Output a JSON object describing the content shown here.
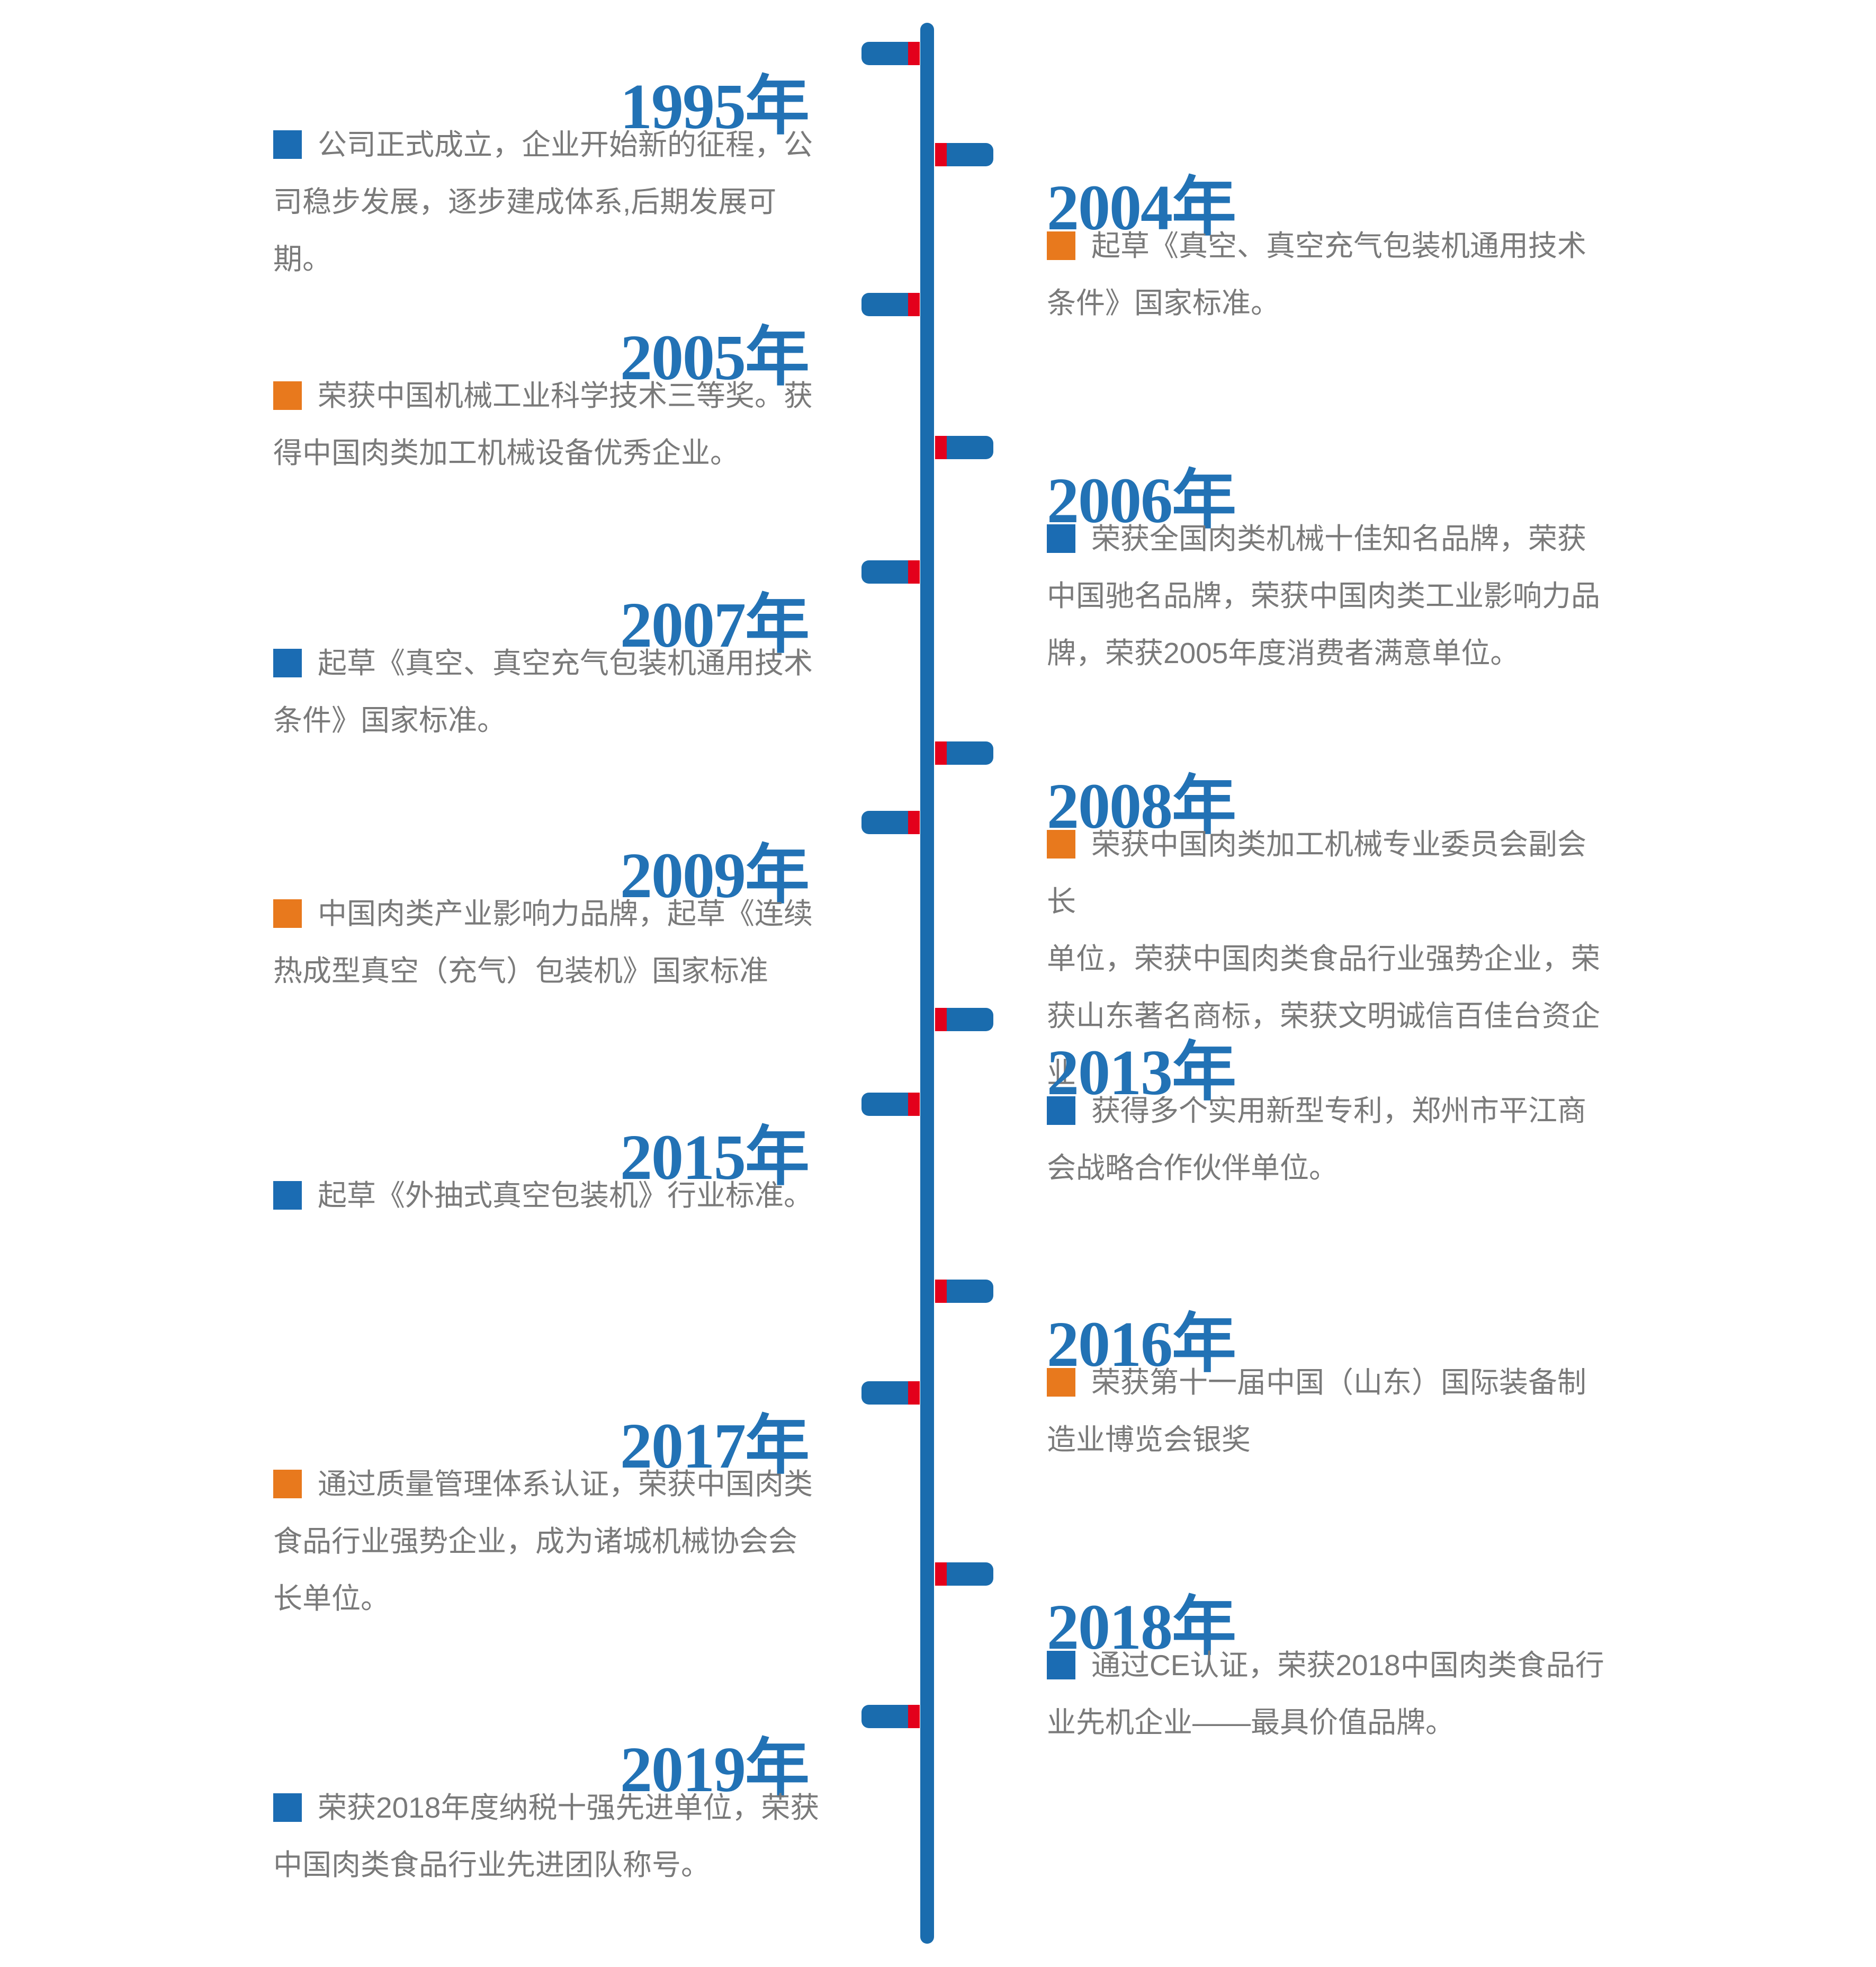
{
  "palette": {
    "axis_blue": "#1a6cae",
    "year_blue": "#2272b5",
    "bullet_blue": "#1b6cb3",
    "bullet_orange": "#e8791d",
    "tick_red": "#e3001b",
    "text_gray": "#7a7a7a",
    "background": "#ffffff"
  },
  "icons": {
    "bullet": "square",
    "connector_tick": "red-square",
    "axis": "vertical-rounded-bar"
  },
  "entries": [
    {
      "year": "1995",
      "suffix": "年",
      "side": "left",
      "bullet_color": "blue",
      "lines": [
        "公司正式成立，企业开始新的征程，公",
        "司稳步发展，逐步建成体系,后期发展可期。"
      ]
    },
    {
      "year": "2004",
      "suffix": "年",
      "side": "right",
      "bullet_color": "orange",
      "lines": [
        "起草《真空、真空充气包装机通用技术",
        "条件》国家标准。"
      ]
    },
    {
      "year": "2005",
      "suffix": "年",
      "side": "left",
      "bullet_color": "orange",
      "lines": [
        "荣获中国机械工业科学技术三等奖。获",
        "得中国肉类加工机械设备优秀企业。"
      ]
    },
    {
      "year": "2006",
      "suffix": "年",
      "side": "right",
      "bullet_color": "blue",
      "lines": [
        "荣获全国肉类机械十佳知名品牌，荣获",
        "中国驰名品牌，荣获中国肉类工业影响力品",
        "牌，荣获2005年度消费者满意单位。"
      ]
    },
    {
      "year": "2007",
      "suffix": "年",
      "side": "left",
      "bullet_color": "blue",
      "lines": [
        "起草《真空、真空充气包装机通用技术",
        "条件》国家标准。"
      ]
    },
    {
      "year": "2008",
      "suffix": "年",
      "side": "right",
      "bullet_color": "orange",
      "lines": [
        "荣获中国肉类加工机械专业委员会副会长",
        "单位，荣获中国肉类食品行业强势企业，荣",
        "获山东著名商标，荣获文明诚信百佳台资企业"
      ]
    },
    {
      "year": "2009",
      "suffix": "年",
      "side": "left",
      "bullet_color": "orange",
      "lines": [
        "中国肉类产业影响力品牌，起草《连续",
        "热成型真空（充气）包装机》国家标准"
      ]
    },
    {
      "year": "2013",
      "suffix": "年",
      "side": "right",
      "bullet_color": "blue",
      "lines": [
        "获得多个实用新型专利，郑州市平江商",
        "会战略合作伙伴单位。"
      ]
    },
    {
      "year": "2015",
      "suffix": "年",
      "side": "left",
      "bullet_color": "blue",
      "lines": [
        "起草《外抽式真空包装机》行业标准。"
      ]
    },
    {
      "year": "2016",
      "suffix": "年",
      "side": "right",
      "bullet_color": "orange",
      "lines": [
        "荣获第十一届中国（山东）国际装备制",
        "造业博览会银奖"
      ]
    },
    {
      "year": "2017",
      "suffix": "年",
      "side": "left",
      "bullet_color": "orange",
      "lines": [
        "通过质量管理体系认证，荣获中国肉类",
        "食品行业强势企业，成为诸城机械协会会",
        "长单位。"
      ]
    },
    {
      "year": "2018",
      "suffix": "年",
      "side": "right",
      "bullet_color": "blue",
      "lines": [
        "通过CE认证，荣获2018中国肉类食品行",
        "业先机企业——最具价值品牌。"
      ]
    },
    {
      "year": "2019",
      "suffix": "年",
      "side": "left",
      "bullet_color": "blue",
      "lines": [
        "荣获2018年度纳税十强先进单位，荣获",
        "中国肉类食品行业先进团队称号。"
      ]
    }
  ]
}
